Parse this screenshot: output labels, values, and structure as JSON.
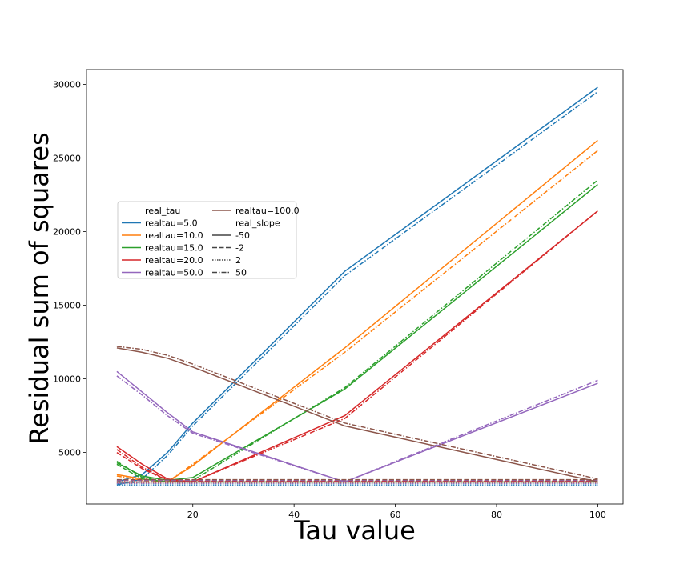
{
  "chart_data": {
    "type": "line",
    "xlabel": "Tau value",
    "ylabel": "Residual sum of squares",
    "xlim": [
      -1,
      105
    ],
    "ylim": [
      1500,
      31000
    ],
    "xticks": [
      20,
      40,
      60,
      80,
      100
    ],
    "yticks": [
      5000,
      10000,
      15000,
      20000,
      25000,
      30000
    ],
    "grid": false,
    "legend_position": "center-left",
    "x": [
      5,
      10,
      15,
      20,
      50,
      100
    ],
    "legend": {
      "hue_title": "real_tau",
      "style_title": "real_slope",
      "hue_entries": [
        {
          "label": "realtau=5.0",
          "color": "#1f77b4"
        },
        {
          "label": "realtau=10.0",
          "color": "#ff7f0e"
        },
        {
          "label": "realtau=15.0",
          "color": "#2ca02c"
        },
        {
          "label": "realtau=20.0",
          "color": "#d62728"
        },
        {
          "label": "realtau=50.0",
          "color": "#9467bd"
        },
        {
          "label": "realtau=100.0",
          "color": "#8c564b"
        }
      ],
      "style_entries": [
        {
          "label": "-50",
          "dash": "solid"
        },
        {
          "label": "-2",
          "dash": "dashed"
        },
        {
          "label": "2",
          "dash": "dotted"
        },
        {
          "label": "50",
          "dash": "dashdot"
        }
      ]
    },
    "series": [
      {
        "tau": "5.0",
        "slope": "-50",
        "color": "#1f77b4",
        "dash": "solid",
        "values": [
          3000,
          3500,
          5000,
          7000,
          17300,
          29800
        ]
      },
      {
        "tau": "5.0",
        "slope": "-2",
        "color": "#1f77b4",
        "dash": "dashed",
        "values": [
          2900,
          3000,
          3000,
          3000,
          3000,
          3000
        ]
      },
      {
        "tau": "5.0",
        "slope": "2",
        "color": "#1f77b4",
        "dash": "dotted",
        "values": [
          2800,
          2800,
          2800,
          2800,
          2800,
          2800
        ]
      },
      {
        "tau": "5.0",
        "slope": "50",
        "color": "#1f77b4",
        "dash": "dashdot",
        "values": [
          2800,
          3200,
          4800,
          6800,
          17000,
          29500
        ]
      },
      {
        "tau": "10.0",
        "slope": "-50",
        "color": "#ff7f0e",
        "dash": "solid",
        "values": [
          3500,
          3200,
          3000,
          4100,
          12100,
          26200
        ]
      },
      {
        "tau": "10.0",
        "slope": "-2",
        "color": "#ff7f0e",
        "dash": "dashed",
        "values": [
          3100,
          3100,
          3100,
          3100,
          3100,
          3100
        ]
      },
      {
        "tau": "10.0",
        "slope": "2",
        "color": "#ff7f0e",
        "dash": "dotted",
        "values": [
          2950,
          2950,
          2950,
          2950,
          2950,
          2950
        ]
      },
      {
        "tau": "10.0",
        "slope": "50",
        "color": "#ff7f0e",
        "dash": "dashdot",
        "values": [
          3400,
          3100,
          3000,
          4200,
          11800,
          25500
        ]
      },
      {
        "tau": "15.0",
        "slope": "-50",
        "color": "#2ca02c",
        "dash": "solid",
        "values": [
          4300,
          3400,
          3100,
          3300,
          9300,
          23200
        ]
      },
      {
        "tau": "15.0",
        "slope": "-2",
        "color": "#2ca02c",
        "dash": "dashed",
        "values": [
          4200,
          3200,
          3000,
          3000,
          3000,
          3000
        ]
      },
      {
        "tau": "15.0",
        "slope": "2",
        "color": "#2ca02c",
        "dash": "dotted",
        "values": [
          2900,
          2900,
          2900,
          2900,
          2900,
          2900
        ]
      },
      {
        "tau": "15.0",
        "slope": "50",
        "color": "#2ca02c",
        "dash": "dashdot",
        "values": [
          4400,
          3300,
          3000,
          3100,
          9400,
          23500
        ]
      },
      {
        "tau": "20.0",
        "slope": "-50",
        "color": "#d62728",
        "dash": "solid",
        "values": [
          5400,
          4200,
          3200,
          3000,
          7500,
          21400
        ]
      },
      {
        "tau": "20.0",
        "slope": "-2",
        "color": "#d62728",
        "dash": "dashed",
        "values": [
          5000,
          3900,
          3100,
          3050,
          3050,
          3050
        ]
      },
      {
        "tau": "20.0",
        "slope": "2",
        "color": "#d62728",
        "dash": "dotted",
        "values": [
          3000,
          3000,
          3000,
          3000,
          3000,
          3000
        ]
      },
      {
        "tau": "20.0",
        "slope": "50",
        "color": "#d62728",
        "dash": "dashdot",
        "values": [
          5200,
          4000,
          3100,
          3000,
          7300,
          21400
        ]
      },
      {
        "tau": "50.0",
        "slope": "-50",
        "color": "#9467bd",
        "dash": "solid",
        "values": [
          10500,
          9100,
          7700,
          6400,
          3000,
          9700
        ]
      },
      {
        "tau": "50.0",
        "slope": "-2",
        "color": "#9467bd",
        "dash": "dashed",
        "values": [
          3100,
          3100,
          3100,
          3100,
          3100,
          3100
        ]
      },
      {
        "tau": "50.0",
        "slope": "2",
        "color": "#9467bd",
        "dash": "dotted",
        "values": [
          2900,
          2900,
          2900,
          2900,
          2900,
          2900
        ]
      },
      {
        "tau": "50.0",
        "slope": "50",
        "color": "#9467bd",
        "dash": "dashdot",
        "values": [
          10200,
          8900,
          7500,
          6300,
          3000,
          9900
        ]
      },
      {
        "tau": "100.0",
        "slope": "-50",
        "color": "#8c564b",
        "dash": "solid",
        "values": [
          12100,
          11800,
          11400,
          10800,
          6800,
          3000
        ]
      },
      {
        "tau": "100.0",
        "slope": "-2",
        "color": "#8c564b",
        "dash": "dashed",
        "values": [
          3150,
          3150,
          3150,
          3150,
          3150,
          3150
        ]
      },
      {
        "tau": "100.0",
        "slope": "2",
        "color": "#8c564b",
        "dash": "dotted",
        "values": [
          3000,
          3000,
          3000,
          3000,
          3000,
          3000
        ]
      },
      {
        "tau": "100.0",
        "slope": "50",
        "color": "#8c564b",
        "dash": "dashdot",
        "values": [
          12200,
          12000,
          11600,
          11000,
          7000,
          3200
        ]
      }
    ]
  }
}
